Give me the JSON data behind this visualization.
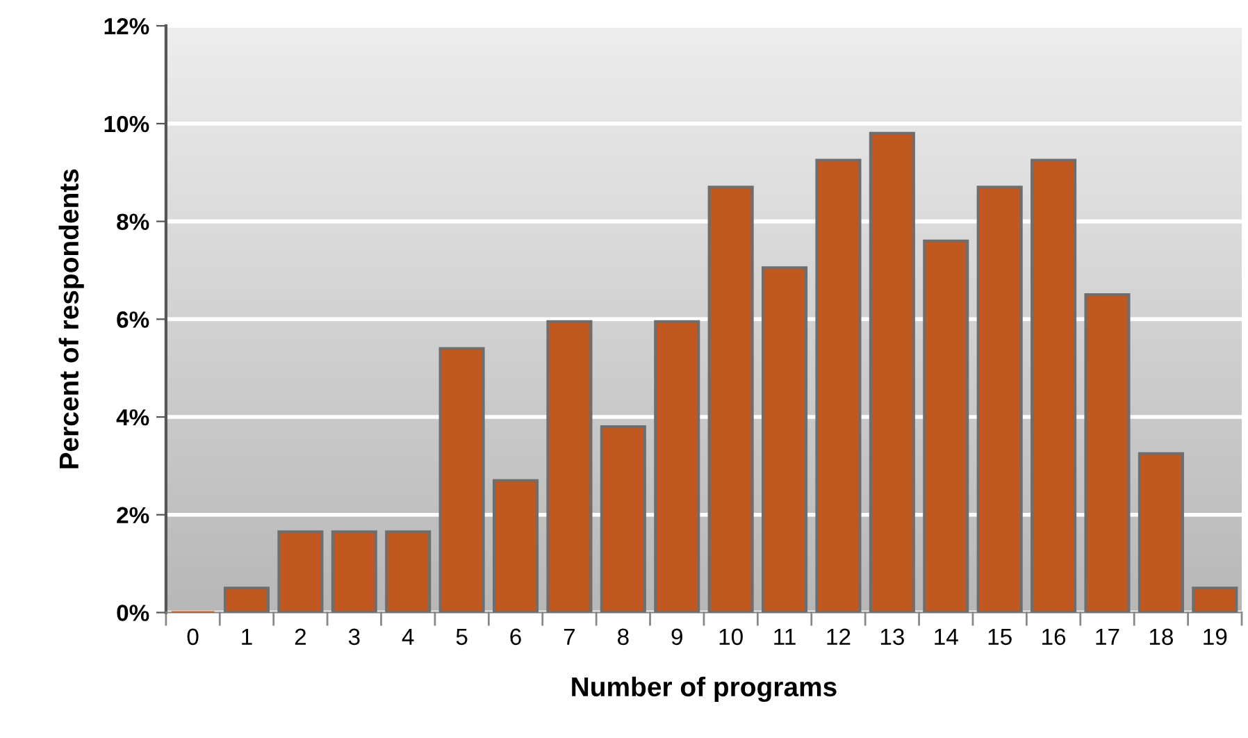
{
  "chart_data": {
    "type": "bar",
    "xlabel": "Number of programs",
    "ylabel": "Percent of respondents",
    "categories": [
      "0",
      "1",
      "2",
      "3",
      "4",
      "5",
      "6",
      "7",
      "8",
      "9",
      "10",
      "11",
      "12",
      "13",
      "14",
      "15",
      "16",
      "17",
      "18",
      "19"
    ],
    "values": [
      0,
      0.5,
      1.65,
      1.65,
      1.65,
      5.4,
      2.7,
      5.95,
      3.8,
      5.95,
      8.7,
      7.05,
      9.25,
      9.8,
      7.6,
      8.7,
      9.25,
      6.5,
      3.25,
      0.5
    ],
    "color": "#c0581f",
    "ylim": [
      0,
      12
    ],
    "yticks": [
      {
        "value": 0,
        "label": "0%"
      },
      {
        "value": 2,
        "label": "2%"
      },
      {
        "value": 4,
        "label": "4%"
      },
      {
        "value": 6,
        "label": "6%"
      },
      {
        "value": 8,
        "label": "8%"
      },
      {
        "value": 10,
        "label": "10%"
      },
      {
        "value": 12,
        "label": "12%"
      }
    ],
    "grid": "y"
  }
}
